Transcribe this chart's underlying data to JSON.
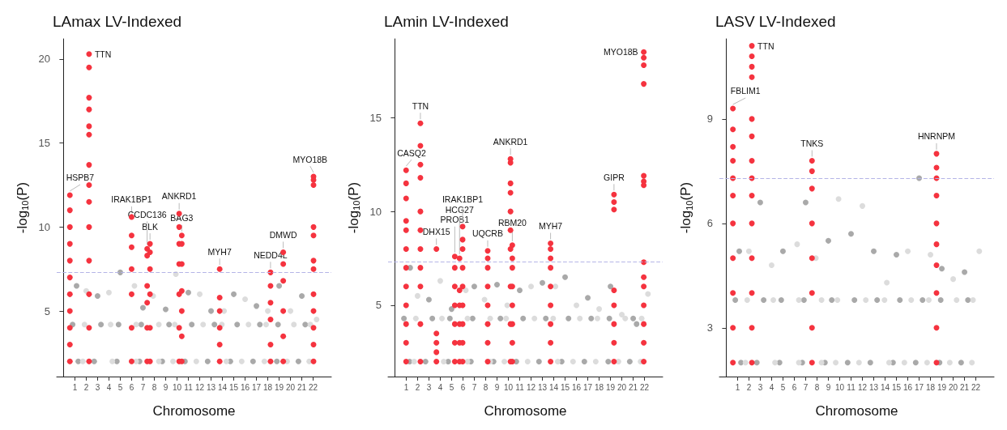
{
  "chart_data": [
    {
      "type": "scatter",
      "title": "LAmax LV-Indexed",
      "xlabel": "Chromosome",
      "ylabel": "-log$_{10}$(P)",
      "marker": "circle",
      "xlim": [
        -0.6,
        23.6
      ],
      "ylim": [
        1.1,
        21.2
      ],
      "yticks": [
        5,
        10,
        15,
        20
      ],
      "xticks": [
        1,
        2,
        3,
        4,
        5,
        6,
        7,
        8,
        9,
        10,
        11,
        12,
        13,
        14,
        15,
        16,
        17,
        18,
        19,
        20,
        21,
        22
      ],
      "ref_lines": [
        {
          "axis": "y",
          "value": 7.3,
          "color": "#b4b4e6",
          "line_style": "dashed"
        }
      ],
      "annotations": [
        {
          "text": "HSPB7",
          "x": 0.56,
          "y": 11.9
        },
        {
          "text": "TTN",
          "x": 2.25,
          "y": 20.3
        },
        {
          "text": "IRAK1BP1",
          "x": 6.0,
          "y": 10.6
        },
        {
          "text": "BLK",
          "x": 7.62,
          "y": 9.0
        },
        {
          "text": "CCDC136",
          "x": 7.37,
          "y": 8.7
        },
        {
          "text": "ANKRD1",
          "x": 10.19,
          "y": 10.8
        },
        {
          "text": "BAG3",
          "x": 10.42,
          "y": 9.5
        },
        {
          "text": "MYH7",
          "x": 13.76,
          "y": 7.5
        },
        {
          "text": "DMWD",
          "x": 19.36,
          "y": 8.5
        },
        {
          "text": "NEDD4L",
          "x": 18.24,
          "y": 7.3
        },
        {
          "text": "MYO18B",
          "x": 22.03,
          "y": 13.0
        }
      ],
      "series": [
        {
          "color": "#a9a9a9",
          "x": [
            1.3,
            1.15,
            0.8,
            2.7,
            3,
            3.3,
            4.7,
            5,
            4.85,
            6.7,
            7,
            6.85,
            8.7,
            9,
            9.3,
            10.7,
            11,
            11.3,
            12.7,
            13,
            13.3,
            14.7,
            15,
            15.3,
            16.7,
            17,
            17.3,
            18.8,
            19,
            18.9,
            20.7,
            21,
            21.3
          ],
          "values": [
            2,
            6.5,
            4.2,
            2,
            5.9,
            4.2,
            2,
            7.3,
            4.2,
            2,
            5.2,
            4.2,
            2,
            5.1,
            4.2,
            2,
            6.1,
            4.2,
            2,
            5.0,
            4.2,
            2,
            6.0,
            4.2,
            2,
            5.3,
            4.2,
            2,
            6.5,
            4.2,
            2,
            5.9,
            4.2
          ]
        },
        {
          "color": "#dcdcdc",
          "x": [
            1.7,
            2,
            1.85,
            4.3,
            4,
            4.15,
            6.4,
            6.25,
            6.4,
            8.4,
            7.9,
            8.4,
            9.65,
            9.9,
            9.8,
            11.7,
            12,
            12.3,
            14.35,
            14.15,
            13.95,
            15.7,
            16,
            16.3,
            17.7,
            18,
            17.85,
            19.7,
            20,
            20.3,
            21.65,
            22.3,
            21.75
          ],
          "values": [
            2,
            6.2,
            4.2,
            2,
            6.1,
            4.2,
            2,
            6.5,
            4.2,
            2,
            5.9,
            4.2,
            2,
            7.2,
            4.2,
            2,
            6.0,
            4.2,
            2,
            5.0,
            4.2,
            2,
            5.7,
            4.2,
            2,
            5.0,
            4.2,
            2,
            5.0,
            4.2,
            2,
            4.5,
            4.2
          ]
        },
        {
          "color": "#f5333f",
          "x": [
            0.56,
            0.56,
            0.56,
            0.56,
            0.56,
            0.56,
            0.56,
            0.56,
            0.56,
            0.56,
            0.56,
            2.25,
            2.25,
            2.25,
            2.25,
            2.25,
            2.25,
            2.25,
            2.25,
            2.25,
            2.25,
            2.25,
            2.25,
            2.25,
            2.25,
            6.0,
            6.0,
            6.0,
            6.0,
            6.0,
            6.0,
            6.0,
            7.37,
            7.37,
            7.37,
            7.37,
            7.37,
            7.37,
            7.62,
            7.62,
            7.62,
            7.62,
            7.62,
            7.62,
            10.19,
            10.19,
            10.19,
            10.19,
            10.19,
            10.19,
            10.19,
            10.42,
            10.42,
            10.42,
            10.42,
            10.42,
            10.42,
            10.42,
            13.76,
            13.76,
            13.76,
            13.76,
            13.76,
            13.76,
            18.24,
            18.24,
            18.24,
            18.24,
            18.24,
            18.24,
            19.36,
            19.36,
            19.36,
            19.36,
            19.36,
            19.36,
            22.03,
            22.03,
            22.03,
            22.03,
            22.03,
            22.03,
            22.03,
            22.03,
            22.03,
            22.03,
            22.03,
            22.03
          ],
          "values": [
            2,
            3,
            4,
            5,
            6,
            7,
            8,
            9,
            10,
            11,
            11.9,
            2,
            4,
            6,
            8,
            10,
            11.5,
            12.5,
            13.7,
            15.5,
            16,
            17,
            17.7,
            19.5,
            20.3,
            2,
            4,
            6,
            7.5,
            8.8,
            9.5,
            10.6,
            2,
            4,
            5.5,
            6.5,
            8.3,
            8.7,
            2,
            4,
            6,
            7.5,
            8.5,
            9.0,
            2,
            4,
            6,
            7.8,
            9,
            10,
            10.8,
            2,
            3.5,
            5,
            6.2,
            7.8,
            9.0,
            9.5,
            2,
            3,
            4,
            5,
            5.8,
            7.5,
            2,
            3,
            4.5,
            5.5,
            6.5,
            7.3,
            2,
            3.5,
            5,
            6.8,
            7.8,
            8.5,
            2,
            3,
            4,
            5,
            6,
            7.5,
            8,
            9.5,
            10,
            12.5,
            12.8,
            13.0
          ]
        }
      ]
    },
    {
      "type": "scatter",
      "title": "LAmin LV-Indexed",
      "xlabel": "Chromosome",
      "ylabel": "-log$_{10}$(P)",
      "marker": "circle",
      "xlim": [
        -0.6,
        23.6
      ],
      "ylim": [
        1.2,
        19.2
      ],
      "yticks": [
        5,
        10,
        15
      ],
      "xticks": [
        1,
        2,
        3,
        4,
        5,
        6,
        7,
        8,
        9,
        10,
        11,
        12,
        13,
        14,
        15,
        16,
        17,
        18,
        19,
        20,
        21,
        22
      ],
      "ref_lines": [
        {
          "axis": "y",
          "value": 7.3,
          "color": "#b4b4e6",
          "line_style": "dashed"
        }
      ],
      "annotations": [
        {
          "text": "CASQ2",
          "x": 0.99,
          "y": 12.2
        },
        {
          "text": "TTN",
          "x": 2.25,
          "y": 14.7
        },
        {
          "text": "DHX15",
          "x": 3.66,
          "y": 8.0
        },
        {
          "text": "PROB1",
          "x": 5.28,
          "y": 7.6
        },
        {
          "text": "HCG27",
          "x": 5.7,
          "y": 7.5
        },
        {
          "text": "IRAK1BP1",
          "x": 5.97,
          "y": 9.2
        },
        {
          "text": "UQCRB",
          "x": 8.18,
          "y": 7.9
        },
        {
          "text": "ANKRD1",
          "x": 10.19,
          "y": 12.8
        },
        {
          "text": "RBM20",
          "x": 10.35,
          "y": 8.2
        },
        {
          "text": "MYH7",
          "x": 13.72,
          "y": 8.3
        },
        {
          "text": "GIPR",
          "x": 19.31,
          "y": 10.9
        },
        {
          "text": "MYO18B",
          "x": 21.93,
          "y": 18.5
        }
      ],
      "series": [
        {
          "color": "#a9a9a9",
          "x": [
            1.3,
            1.35,
            0.8,
            2.7,
            3,
            3.3,
            4.7,
            5,
            4.85,
            6.7,
            7,
            6.85,
            8.7,
            9,
            9.3,
            10.7,
            11,
            11.3,
            12.7,
            13,
            13.3,
            14.7,
            15,
            15.3,
            16.7,
            17,
            17.3,
            18.8,
            19,
            18.9,
            20.7,
            21,
            21.3
          ],
          "values": [
            2,
            7.0,
            4.3,
            2,
            5.3,
            4.3,
            2,
            4.8,
            4.3,
            2,
            6.0,
            4.3,
            2,
            6.1,
            4.3,
            2,
            5.8,
            4.3,
            2,
            6.2,
            4.3,
            2,
            6.5,
            4.3,
            2,
            5.4,
            4.3,
            2,
            6.0,
            4.3,
            2,
            4.3,
            4.0
          ]
        },
        {
          "color": "#dcdcdc",
          "x": [
            1.7,
            2,
            1.85,
            4.3,
            4,
            4.15,
            6.4,
            6.25,
            6.4,
            8.4,
            7.9,
            8.4,
            9.65,
            9.9,
            9.8,
            11.7,
            12,
            12.3,
            14.35,
            14.15,
            13.95,
            15.7,
            16,
            16.3,
            17.7,
            18,
            17.85,
            19.7,
            20,
            20.3,
            21.65,
            22.3,
            21.75
          ],
          "values": [
            2,
            5.5,
            4.3,
            2,
            6.3,
            4.3,
            2,
            5.8,
            4.3,
            2,
            5.3,
            4.3,
            2,
            5.0,
            4.3,
            2,
            6.0,
            4.3,
            2,
            6.0,
            4.3,
            2,
            5.0,
            4.3,
            2,
            4.8,
            4.3,
            2,
            4.5,
            4.3,
            2,
            5.6,
            4.3
          ]
        },
        {
          "color": "#f5333f",
          "x": [
            0.99,
            0.99,
            0.99,
            0.99,
            0.99,
            0.99,
            0.99,
            0.99,
            0.99,
            0.99,
            0.99,
            0.99,
            2.25,
            2.25,
            2.25,
            2.25,
            2.25,
            2.25,
            2.25,
            2.25,
            2.25,
            2.25,
            2.25,
            3.66,
            3.66,
            3.66,
            3.66,
            3.66,
            5.28,
            5.28,
            5.28,
            5.28,
            5.28,
            5.28,
            5.28,
            5.7,
            5.7,
            5.7,
            5.7,
            5.7,
            5.7,
            5.97,
            5.97,
            5.97,
            5.97,
            5.97,
            5.97,
            5.97,
            5.97,
            5.97,
            8.18,
            8.18,
            8.18,
            8.18,
            8.18,
            8.18,
            8.18,
            8.18,
            10.35,
            10.35,
            10.35,
            10.35,
            10.35,
            10.35,
            10.35,
            10.35,
            10.19,
            10.19,
            10.19,
            10.19,
            10.19,
            10.19,
            10.19,
            10.19,
            10.19,
            10.19,
            13.72,
            13.72,
            13.72,
            13.72,
            13.72,
            13.72,
            13.72,
            13.72,
            13.72,
            19.31,
            19.31,
            19.31,
            19.31,
            19.31,
            19.31,
            19.31,
            19.31,
            21.93,
            21.93,
            21.93,
            21.93,
            21.93,
            21.93,
            21.93,
            21.93,
            21.93,
            21.93,
            21.93,
            21.93,
            21.93,
            21.93
          ],
          "values": [
            2,
            3,
            4,
            5,
            6,
            7,
            8,
            9,
            9.5,
            10.7,
            11.5,
            12.2,
            2,
            4,
            6,
            7,
            8,
            9,
            10,
            11.8,
            12.5,
            13.5,
            14.7,
            2,
            2.5,
            3,
            3.5,
            8.0,
            2,
            3,
            4,
            5,
            6,
            7,
            7.6,
            2,
            3,
            4,
            5,
            5.8,
            7.5,
            2,
            3,
            4,
            5,
            6,
            7,
            8,
            8.5,
            9.2,
            2,
            3,
            4,
            5,
            6,
            7,
            7.5,
            7.9,
            2,
            3,
            4,
            5,
            6,
            7,
            7.5,
            8.2,
            2,
            4,
            6,
            8,
            9,
            10,
            11,
            11.5,
            12.6,
            12.8,
            2,
            3,
            4,
            5,
            6,
            7,
            7.5,
            8.0,
            8.3,
            2,
            3,
            4,
            5,
            5.8,
            10.1,
            10.5,
            10.9,
            2,
            3,
            4,
            5,
            6,
            6.5,
            7.3,
            11.4,
            11.6,
            11.9,
            16.8,
            17.8,
            18.2,
            18.5
          ]
        }
      ]
    },
    {
      "type": "scatter",
      "title": "LASV LV-Indexed",
      "xlabel": "Chromosome",
      "ylabel": "-log$_{10}$(P)",
      "marker": "circle",
      "xlim": [
        -0.6,
        23.6
      ],
      "ylim": [
        1.6,
        11.3
      ],
      "yticks": [
        3,
        6,
        9
      ],
      "xticks": [
        1,
        2,
        3,
        4,
        5,
        6,
        7,
        8,
        9,
        10,
        11,
        12,
        13,
        14,
        15,
        16,
        17,
        18,
        19,
        20,
        21,
        22
      ],
      "ref_lines": [
        {
          "axis": "y",
          "value": 7.3,
          "color": "#b4b4e6",
          "line_style": "dashed"
        }
      ],
      "annotations": [
        {
          "text": "FBLIM1",
          "x": 0.59,
          "y": 9.3
        },
        {
          "text": "TTN",
          "x": 2.26,
          "y": 11.1
        },
        {
          "text": "TNKS",
          "x": 7.56,
          "y": 7.8
        },
        {
          "text": "HNRNPM",
          "x": 18.53,
          "y": 8.0
        }
      ],
      "series": [
        {
          "color": "#a9a9a9",
          "x": [
            1.3,
            1.15,
            0.8,
            2.7,
            3,
            3.3,
            4.7,
            5,
            4.85,
            6.7,
            7,
            6.85,
            8.7,
            9,
            9.3,
            10.7,
            11,
            11.3,
            12.7,
            13,
            13.3,
            14.7,
            15,
            15.3,
            16.7,
            17,
            17.3,
            18.8,
            19,
            18.9,
            20.7,
            21,
            21.3
          ],
          "values": [
            2,
            5.2,
            3.8,
            2,
            6.6,
            3.8,
            2,
            5.2,
            3.8,
            2,
            6.6,
            3.8,
            2,
            5.5,
            3.8,
            2,
            5.7,
            3.8,
            2,
            5.2,
            3.8,
            2,
            5.1,
            3.8,
            2,
            7.3,
            3.8,
            2,
            4.7,
            3.8,
            2,
            4.6,
            3.8
          ]
        },
        {
          "color": "#dcdcdc",
          "x": [
            1.7,
            2,
            1.85,
            4.3,
            4,
            4.15,
            6.4,
            6.25,
            6.4,
            8.4,
            7.9,
            8.4,
            9.65,
            9.9,
            9.8,
            11.7,
            12,
            12.3,
            14.35,
            14.15,
            13.95,
            15.7,
            16,
            16.3,
            17.7,
            18,
            17.85,
            19.7,
            20,
            20.3,
            21.65,
            22.3,
            21.75
          ],
          "values": [
            2,
            5.2,
            3.8,
            2,
            4.8,
            3.8,
            2,
            5.4,
            3.8,
            2,
            5.0,
            3.8,
            2,
            6.7,
            3.8,
            2,
            6.5,
            3.8,
            2,
            4.3,
            3.8,
            2,
            5.2,
            3.8,
            2,
            5.1,
            3.8,
            2,
            4.4,
            3.8,
            2,
            5.2,
            3.8
          ]
        },
        {
          "color": "#f5333f",
          "x": [
            0.59,
            0.59,
            0.59,
            0.59,
            0.59,
            0.59,
            0.59,
            0.59,
            0.59,
            0.59,
            0.59,
            2.26,
            2.26,
            2.26,
            2.26,
            2.26,
            2.26,
            2.26,
            2.26,
            2.26,
            2.26,
            2.26,
            2.26,
            2.26,
            2.26,
            7.56,
            7.56,
            7.56,
            7.56,
            7.56,
            7.56,
            7.56,
            7.56,
            18.53,
            18.53,
            18.53,
            18.53,
            18.53,
            18.53,
            18.53,
            18.53,
            18.53,
            18.53
          ],
          "values": [
            2,
            3,
            4,
            5,
            6,
            6.8,
            7.3,
            7.8,
            8.2,
            8.7,
            9.3,
            2,
            3,
            4,
            5,
            6,
            6.8,
            7.3,
            7.8,
            8.5,
            9.0,
            10.2,
            10.5,
            10.8,
            11.1,
            2,
            3,
            4,
            5,
            6,
            7,
            7.5,
            7.8,
            2,
            3,
            4,
            4.8,
            5.4,
            6,
            6.8,
            7.3,
            7.6,
            8.0
          ]
        }
      ]
    }
  ]
}
